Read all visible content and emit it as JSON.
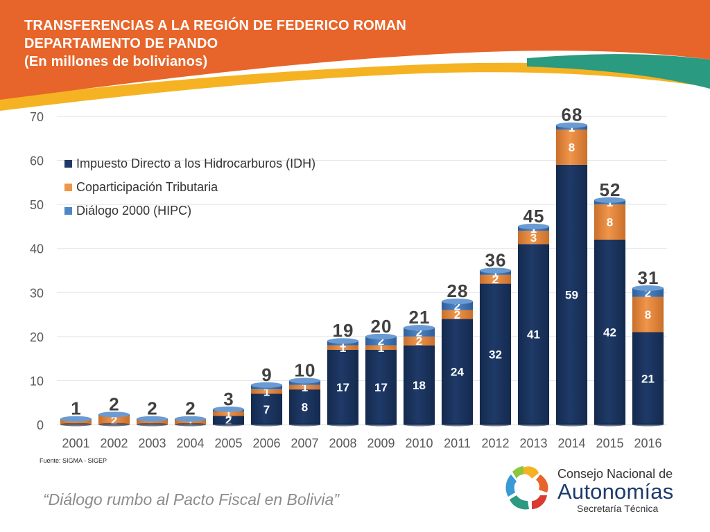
{
  "header": {
    "title_line1": "TRANSFERENCIAS A LA REGIÓN DE FEDERICO ROMAN",
    "title_line2": "DEPARTAMENTO DE PANDO",
    "title_line3": "(En millones de bolivianos)"
  },
  "colors": {
    "banner_orange": "#e7652a",
    "banner_yellow": "#f5b323",
    "banner_teal": "#2a9a80",
    "idh": "#1f3a68",
    "coparticipacion": "#f0954a",
    "hipc": "#4f86c6",
    "label_gray": "#595959"
  },
  "chart_data": {
    "type": "bar",
    "stacked": true,
    "title": "",
    "xlabel": "",
    "ylabel": "",
    "ylim": [
      0,
      70
    ],
    "yticks": [
      "0",
      "10",
      "20",
      "30",
      "40",
      "50",
      "60",
      "70"
    ],
    "grid": true,
    "legend_position": "top-left",
    "categories": [
      "2001",
      "2002",
      "2003",
      "2004",
      "2005",
      "2006",
      "2007",
      "2008",
      "2009",
      "2010",
      "2011",
      "2012",
      "2013",
      "2014",
      "2015",
      "2016"
    ],
    "series": [
      {
        "name": "Impuesto Directo a los Hidrocarburos (IDH)",
        "values": [
          0,
          0,
          0,
          0,
          2,
          7,
          8,
          17,
          17,
          18,
          24,
          32,
          41,
          59,
          42,
          21
        ],
        "labels": [
          "",
          "",
          "",
          "",
          "2",
          "7",
          "8",
          "17",
          "17",
          "18",
          "24",
          "32",
          "41",
          "59",
          "42",
          "21"
        ]
      },
      {
        "name": "Coparticipación Tributaria",
        "values": [
          1,
          2,
          1,
          1,
          1,
          1,
          1,
          1,
          1,
          2,
          2,
          2,
          3,
          8,
          8,
          8
        ],
        "labels": [
          "",
          "2",
          "",
          "1",
          "1",
          "1",
          "1",
          "1",
          "1",
          "2",
          "2",
          "2",
          "3",
          "8",
          "8",
          "8"
        ]
      },
      {
        "name": "Diálogo 2000 (HIPC)",
        "values": [
          0.3,
          0.3,
          0.3,
          0.3,
          0.5,
          1,
          1,
          1,
          2,
          2,
          2,
          1,
          1,
          1,
          1,
          2
        ],
        "labels": [
          "",
          "",
          "",
          "",
          "",
          "",
          "",
          "1",
          "2",
          "2",
          "2",
          "1",
          "1",
          "1",
          "1",
          "2"
        ]
      }
    ],
    "totals": [
      "1",
      "2",
      "2",
      "2",
      "3",
      "9",
      "10",
      "19",
      "20",
      "21",
      "28",
      "36",
      "45",
      "68",
      "52",
      "31"
    ]
  },
  "footer": {
    "source": "Fuente: SIGMA - SIGEP",
    "slogan": "“Diálogo rumbo al Pacto Fiscal en Bolivia”"
  },
  "logo": {
    "line1": "Consejo Nacional de",
    "line2": "Autonomías",
    "line3": "Secretaría Técnica"
  }
}
